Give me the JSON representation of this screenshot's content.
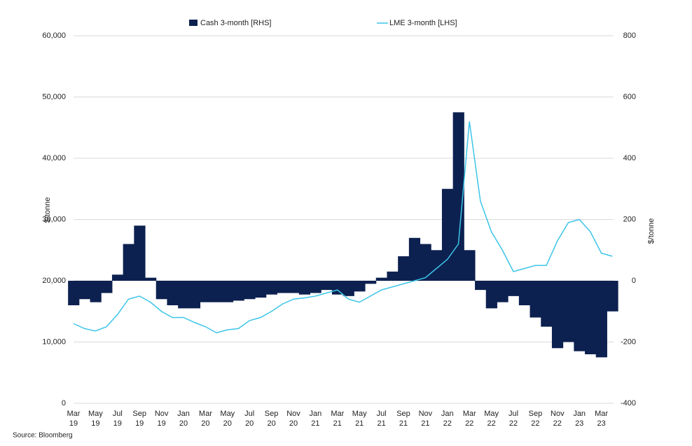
{
  "chart_data": {
    "type": "dual-axis",
    "categories": [
      [
        "Mar",
        "19"
      ],
      null,
      [
        "May",
        "19"
      ],
      null,
      [
        "Jul",
        "19"
      ],
      null,
      [
        "Sep",
        "19"
      ],
      null,
      [
        "Nov",
        "19"
      ],
      null,
      [
        "Jan",
        "20"
      ],
      null,
      [
        "Mar",
        "20"
      ],
      null,
      [
        "May",
        "20"
      ],
      null,
      [
        "Jul",
        "20"
      ],
      null,
      [
        "Sep",
        "20"
      ],
      null,
      [
        "Nov",
        "20"
      ],
      null,
      [
        "Jan",
        "21"
      ],
      null,
      [
        "Mar",
        "21"
      ],
      null,
      [
        "May",
        "21"
      ],
      null,
      [
        "Jul",
        "21"
      ],
      null,
      [
        "Sep",
        "21"
      ],
      null,
      [
        "Nov",
        "21"
      ],
      null,
      [
        "Jan",
        "22"
      ],
      null,
      [
        "Mar",
        "22"
      ],
      null,
      [
        "May",
        "22"
      ],
      null,
      [
        "Jul",
        "22"
      ],
      null,
      [
        "Sep",
        "22"
      ],
      null,
      [
        "Nov",
        "22"
      ],
      null,
      [
        "Jan",
        "23"
      ],
      null,
      [
        "Mar",
        "23"
      ],
      null
    ],
    "series": [
      {
        "name": "Cash 3-month [RHS]",
        "type": "area",
        "axis": "y2",
        "color": "#0d2150",
        "values": [
          -80,
          -60,
          -70,
          -40,
          20,
          120,
          180,
          10,
          -60,
          -80,
          -90,
          -90,
          -70,
          -70,
          -70,
          -65,
          -60,
          -55,
          -45,
          -40,
          -40,
          -45,
          -40,
          -30,
          -45,
          -50,
          -35,
          -10,
          10,
          30,
          80,
          140,
          120,
          100,
          300,
          550,
          100,
          -30,
          -90,
          -70,
          -50,
          -80,
          -120,
          -150,
          -220,
          -200,
          -230,
          -240,
          -250,
          -100
        ]
      },
      {
        "name": "LME 3-month [LHS]",
        "type": "line",
        "color": "#3cc5e8",
        "values": [
          13000,
          12200,
          11800,
          12500,
          14500,
          17000,
          17500,
          16500,
          15000,
          14000,
          14000,
          13200,
          12500,
          11500,
          12000,
          12200,
          13500,
          14000,
          15000,
          16200,
          17000,
          17200,
          17500,
          18000,
          18500,
          17000,
          16500,
          17500,
          18500,
          19000,
          19500,
          20000,
          20500,
          22000,
          23500,
          26000,
          46000,
          33000,
          28000,
          25000,
          21500,
          22000,
          22500,
          22500,
          26500,
          29500,
          30000,
          28000,
          24500,
          24000
        ]
      }
    ],
    "ylabel": "$/tonne",
    "y2label": "$/tonne",
    "ylim": [
      0,
      60000
    ],
    "yticks": [
      0,
      {
        "value": 10000,
        "label": "10,000"
      },
      {
        "value": 20000,
        "label": "20,000"
      },
      {
        "value": 30000,
        "label": "30,000"
      },
      {
        "value": 40000,
        "label": "40,000"
      },
      {
        "value": 50000,
        "label": "50,000"
      },
      {
        "value": 60000,
        "label": "60,000"
      }
    ],
    "y2lim": [
      -400,
      800
    ],
    "y2ticks": [
      -400,
      -200,
      0,
      200,
      400,
      600,
      800
    ],
    "grid": true,
    "source": "Source: Bloomberg"
  }
}
